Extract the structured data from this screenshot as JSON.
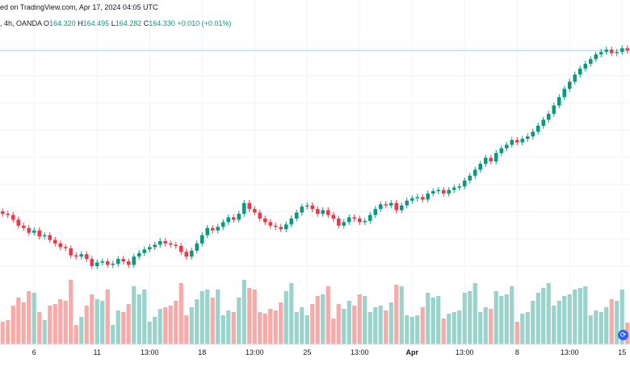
{
  "header": {
    "line1": "ed on TradingView.com, Apr 17, 2024 04:05 UTC",
    "interval": ", 4h, OANDA",
    "open_label": "O",
    "open_value": "164.320",
    "high_label": "H",
    "high_value": "164.495",
    "low_label": "L",
    "low_value": "164.282",
    "close_label": "C",
    "close_value": "164.330",
    "change": "+0.010 (+0.01%)"
  },
  "colors": {
    "up": "#089981",
    "down": "#f23645",
    "volume_up": "#9bd3cc",
    "volume_down": "#f7aaa8",
    "grid": "#f0f3fa",
    "price_line": "#b6e1dc",
    "axis_text": "#131722",
    "icon": "#2962ff"
  },
  "bottom_icon": "tradingview-logo-icon",
  "chart_data": {
    "type": "candlestick",
    "title": "",
    "xlabel": "",
    "ylabel": "",
    "last_close": 164.33,
    "grid": true,
    "x_tick_labels": [
      "6",
      "11",
      "13:00",
      "18",
      "13:00",
      "25",
      "13:00",
      "Apr",
      "13:00",
      "8",
      "13:00",
      "15"
    ],
    "x_tick_bar_index": [
      6,
      18,
      28,
      38,
      48,
      58,
      68,
      78,
      88,
      98,
      108,
      118
    ],
    "x_tick_bold": [
      false,
      false,
      false,
      false,
      false,
      false,
      false,
      true,
      false,
      false,
      false,
      false
    ],
    "closes": [
      150.6,
      150.5,
      150.1,
      149.6,
      149.4,
      149.0,
      149.2,
      148.7,
      148.8,
      148.4,
      148.1,
      147.8,
      147.7,
      147.1,
      147.0,
      147.2,
      146.8,
      146.2,
      146.5,
      146.6,
      146.3,
      146.4,
      146.8,
      146.6,
      146.3,
      147.0,
      147.3,
      147.6,
      147.8,
      148.0,
      148.3,
      148.1,
      148.0,
      147.9,
      147.4,
      147.0,
      147.5,
      148.1,
      148.8,
      149.4,
      149.2,
      149.5,
      149.9,
      150.3,
      150.1,
      150.6,
      151.5,
      151.0,
      150.7,
      150.2,
      149.9,
      149.6,
      149.5,
      149.3,
      149.7,
      150.2,
      150.7,
      151.2,
      151.3,
      151.0,
      150.6,
      150.9,
      150.5,
      150.2,
      149.6,
      149.9,
      150.3,
      150.2,
      149.9,
      150.0,
      150.5,
      151.0,
      151.4,
      151.3,
      151.5,
      150.9,
      151.3,
      151.7,
      151.9,
      152.0,
      151.8,
      152.3,
      152.5,
      152.6,
      152.3,
      152.6,
      152.8,
      152.9,
      153.4,
      153.8,
      154.3,
      154.8,
      155.3,
      155.0,
      155.7,
      156.1,
      156.4,
      156.8,
      156.6,
      156.9,
      157.1,
      157.5,
      158.0,
      158.5,
      159.0,
      159.7,
      160.4,
      161.1,
      161.7,
      162.3,
      162.8,
      163.2,
      163.6,
      164.0,
      164.2,
      164.4,
      164.1,
      164.2,
      164.5,
      164.33
    ],
    "volume_note": "volume histogram shown beneath price bars"
  }
}
